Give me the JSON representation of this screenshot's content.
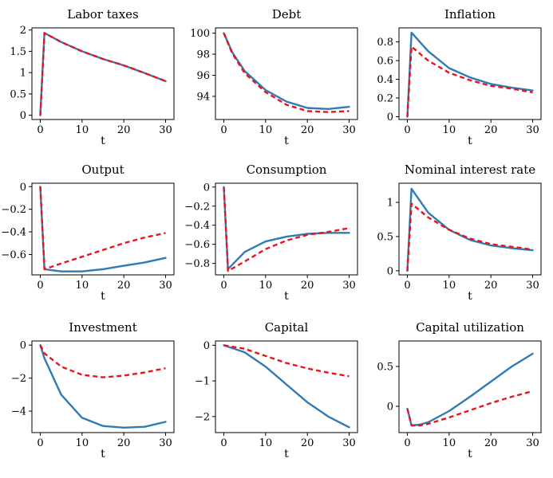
{
  "chart_data": [
    {
      "type": "line",
      "title": "Labor taxes",
      "xlabel": "t",
      "xlim": [
        -2,
        32
      ],
      "ylim": [
        -0.1,
        2.05
      ],
      "xticks": [
        0,
        10,
        20,
        30
      ],
      "xtick_labels": [
        "0",
        "10",
        "20",
        "30"
      ],
      "yticks": [
        0,
        0.5,
        1,
        1.5,
        2
      ],
      "ytick_labels": [
        "0",
        "0.5",
        "1",
        "1.5",
        "2"
      ],
      "x": [
        0,
        1,
        5,
        10,
        15,
        20,
        25,
        30
      ],
      "series": [
        {
          "name": "solid",
          "style": "solid",
          "values": [
            0,
            1.93,
            1.72,
            1.5,
            1.32,
            1.17,
            0.99,
            0.8
          ]
        },
        {
          "name": "dashed",
          "style": "dashed",
          "values": [
            0,
            1.93,
            1.72,
            1.5,
            1.32,
            1.17,
            0.99,
            0.8
          ]
        }
      ]
    },
    {
      "type": "line",
      "title": "Debt",
      "xlabel": "t",
      "xlim": [
        -2,
        32
      ],
      "ylim": [
        91.8,
        100.5
      ],
      "xticks": [
        0,
        10,
        20,
        30
      ],
      "xtick_labels": [
        "0",
        "10",
        "20",
        "30"
      ],
      "yticks": [
        94,
        96,
        98,
        100
      ],
      "ytick_labels": [
        "94",
        "96",
        "98",
        "100"
      ],
      "x": [
        0,
        2,
        5,
        10,
        15,
        20,
        25,
        30
      ],
      "series": [
        {
          "name": "solid",
          "style": "solid",
          "values": [
            100,
            98.2,
            96.4,
            94.6,
            93.5,
            92.9,
            92.8,
            93.0
          ]
        },
        {
          "name": "dashed",
          "style": "dashed",
          "values": [
            100,
            98.1,
            96.2,
            94.4,
            93.2,
            92.6,
            92.5,
            92.6
          ]
        }
      ]
    },
    {
      "type": "line",
      "title": "Inflation",
      "xlabel": "t",
      "xlim": [
        -2,
        32
      ],
      "ylim": [
        -0.03,
        0.95
      ],
      "xticks": [
        0,
        10,
        20,
        30
      ],
      "xtick_labels": [
        "0",
        "10",
        "20",
        "30"
      ],
      "yticks": [
        0,
        0.2,
        0.4,
        0.6,
        0.8
      ],
      "ytick_labels": [
        "0",
        "0.2",
        "0.4",
        "0.6",
        "0.8"
      ],
      "x": [
        0,
        1,
        5,
        10,
        15,
        20,
        25,
        30
      ],
      "series": [
        {
          "name": "solid",
          "style": "solid",
          "values": [
            0,
            0.9,
            0.7,
            0.52,
            0.42,
            0.35,
            0.31,
            0.28
          ]
        },
        {
          "name": "dashed",
          "style": "dashed",
          "values": [
            0,
            0.75,
            0.6,
            0.47,
            0.39,
            0.33,
            0.3,
            0.26
          ]
        }
      ]
    },
    {
      "type": "line",
      "title": "Output",
      "xlabel": "t",
      "xlim": [
        -2,
        32
      ],
      "ylim": [
        -0.78,
        0.03
      ],
      "xticks": [
        0,
        10,
        20,
        30
      ],
      "xtick_labels": [
        "0",
        "10",
        "20",
        "30"
      ],
      "yticks": [
        0,
        -0.2,
        -0.4,
        -0.6
      ],
      "ytick_labels": [
        "0",
        "−0.2",
        "−0.4",
        "−0.6"
      ],
      "x": [
        0,
        1,
        5,
        10,
        15,
        20,
        25,
        30
      ],
      "series": [
        {
          "name": "solid",
          "style": "solid",
          "values": [
            0,
            -0.73,
            -0.75,
            -0.75,
            -0.73,
            -0.7,
            -0.67,
            -0.63
          ]
        },
        {
          "name": "dashed",
          "style": "dashed",
          "values": [
            0,
            -0.73,
            -0.68,
            -0.62,
            -0.56,
            -0.5,
            -0.45,
            -0.41
          ]
        }
      ]
    },
    {
      "type": "line",
      "title": "Consumption",
      "xlabel": "t",
      "xlim": [
        -2,
        32
      ],
      "ylim": [
        -0.92,
        0.04
      ],
      "xticks": [
        0,
        10,
        20,
        30
      ],
      "xtick_labels": [
        "0",
        "10",
        "20",
        "30"
      ],
      "yticks": [
        0,
        -0.2,
        -0.4,
        -0.6,
        -0.8
      ],
      "ytick_labels": [
        "0",
        "−0.2",
        "−0.4",
        "−0.6",
        "−0.8"
      ],
      "x": [
        0,
        1,
        5,
        10,
        15,
        20,
        25,
        30
      ],
      "series": [
        {
          "name": "solid",
          "style": "solid",
          "values": [
            0,
            -0.86,
            -0.68,
            -0.57,
            -0.52,
            -0.49,
            -0.48,
            -0.48
          ]
        },
        {
          "name": "dashed",
          "style": "dashed",
          "values": [
            0,
            -0.88,
            -0.78,
            -0.65,
            -0.56,
            -0.5,
            -0.47,
            -0.43
          ]
        }
      ]
    },
    {
      "type": "line",
      "title": "Nominal interest rate",
      "xlabel": "t",
      "xlim": [
        -2,
        32
      ],
      "ylim": [
        -0.06,
        1.28
      ],
      "xticks": [
        0,
        10,
        20,
        30
      ],
      "xtick_labels": [
        "0",
        "10",
        "20",
        "30"
      ],
      "yticks": [
        0,
        0.5,
        1
      ],
      "ytick_labels": [
        "0",
        "0.5",
        "1"
      ],
      "x": [
        0,
        1,
        5,
        10,
        15,
        20,
        25,
        30
      ],
      "series": [
        {
          "name": "solid",
          "style": "solid",
          "values": [
            0,
            1.2,
            0.85,
            0.6,
            0.45,
            0.37,
            0.33,
            0.3
          ]
        },
        {
          "name": "dashed",
          "style": "dashed",
          "values": [
            0,
            0.98,
            0.78,
            0.6,
            0.47,
            0.39,
            0.35,
            0.31
          ]
        }
      ]
    },
    {
      "type": "line",
      "title": "Investment",
      "xlabel": "t",
      "xlim": [
        -2,
        32
      ],
      "ylim": [
        -5.3,
        0.25
      ],
      "xticks": [
        0,
        10,
        20,
        30
      ],
      "xtick_labels": [
        "0",
        "10",
        "20",
        "30"
      ],
      "yticks": [
        0,
        -2,
        -4
      ],
      "ytick_labels": [
        "0",
        "−2",
        "−4"
      ],
      "x": [
        0,
        1,
        5,
        10,
        15,
        20,
        25,
        30
      ],
      "series": [
        {
          "name": "solid",
          "style": "solid",
          "values": [
            0,
            -0.8,
            -3.0,
            -4.4,
            -4.9,
            -5.0,
            -4.95,
            -4.65
          ]
        },
        {
          "name": "dashed",
          "style": "dashed",
          "values": [
            0,
            -0.5,
            -1.3,
            -1.8,
            -1.95,
            -1.85,
            -1.65,
            -1.4
          ]
        }
      ]
    },
    {
      "type": "line",
      "title": "Capital",
      "xlabel": "t",
      "xlim": [
        -2,
        32
      ],
      "ylim": [
        -2.45,
        0.12
      ],
      "xticks": [
        0,
        10,
        20,
        30
      ],
      "xtick_labels": [
        "0",
        "10",
        "20",
        "30"
      ],
      "yticks": [
        0,
        -1,
        -2
      ],
      "ytick_labels": [
        "0",
        "−1",
        "−2"
      ],
      "x": [
        0,
        5,
        10,
        15,
        20,
        25,
        30
      ],
      "series": [
        {
          "name": "solid",
          "style": "solid",
          "values": [
            0,
            -0.2,
            -0.6,
            -1.1,
            -1.6,
            -2.0,
            -2.3
          ]
        },
        {
          "name": "dashed",
          "style": "dashed",
          "values": [
            0,
            -0.1,
            -0.3,
            -0.5,
            -0.65,
            -0.77,
            -0.87
          ]
        }
      ]
    },
    {
      "type": "line",
      "title": "Capital utilization",
      "xlabel": "t",
      "xlim": [
        -2,
        32
      ],
      "ylim": [
        -0.33,
        0.82
      ],
      "xticks": [
        0,
        10,
        20,
        30
      ],
      "xtick_labels": [
        "0",
        "10",
        "20",
        "30"
      ],
      "yticks": [
        0,
        0.5
      ],
      "ytick_labels": [
        "0",
        "0.5"
      ],
      "x": [
        0,
        1,
        3,
        5,
        10,
        15,
        20,
        25,
        30
      ],
      "series": [
        {
          "name": "solid",
          "style": "solid",
          "values": [
            -0.03,
            -0.24,
            -0.23,
            -0.2,
            -0.06,
            0.12,
            0.31,
            0.5,
            0.66
          ]
        },
        {
          "name": "dashed",
          "style": "dashed",
          "values": [
            -0.03,
            -0.24,
            -0.24,
            -0.22,
            -0.14,
            -0.05,
            0.04,
            0.12,
            0.19
          ]
        }
      ]
    }
  ]
}
